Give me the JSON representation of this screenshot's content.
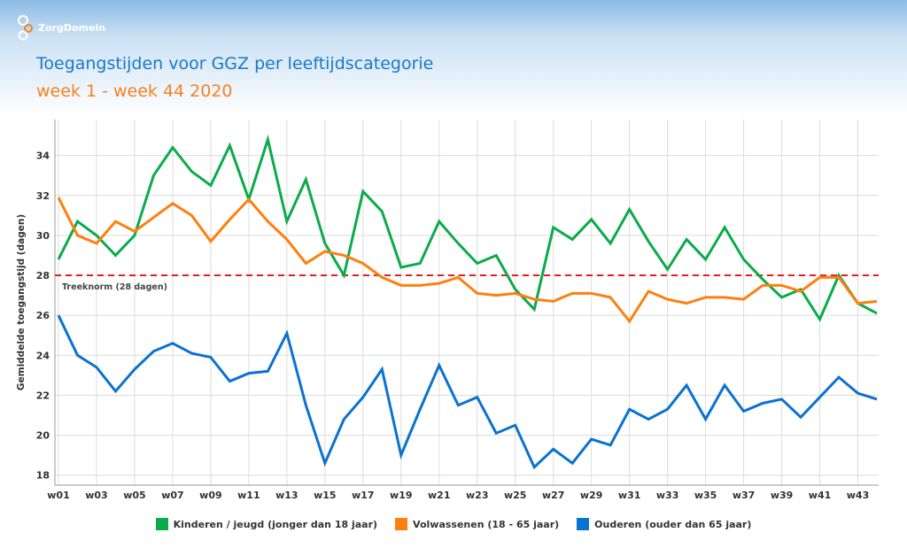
{
  "brand": {
    "name": "ZorgDomein"
  },
  "chart_data": {
    "type": "line",
    "title": "Toegangstijden voor GGZ per leeftijdscategorie",
    "subtitle": "week 1 - week 44 2020",
    "xlabel": "",
    "ylabel": "Gemiddelde toegangstijd (dagen)",
    "ylim": [
      17.5,
      35.8
    ],
    "yticks": [
      18,
      20,
      22,
      24,
      26,
      28,
      30,
      32,
      34
    ],
    "grid": true,
    "legend_position": "bottom",
    "x": [
      "w01",
      "w02",
      "w03",
      "w04",
      "w05",
      "w06",
      "w07",
      "w08",
      "w09",
      "w10",
      "w11",
      "w12",
      "w13",
      "w14",
      "w15",
      "w16",
      "w17",
      "w18",
      "w19",
      "w20",
      "w21",
      "w22",
      "w23",
      "w24",
      "w25",
      "w26",
      "w27",
      "w28",
      "w29",
      "w30",
      "w31",
      "w32",
      "w33",
      "w34",
      "w35",
      "w36",
      "w37",
      "w38",
      "w39",
      "w40",
      "w41",
      "w42",
      "w43",
      "w44"
    ],
    "xtick_labels": [
      "w01",
      "w03",
      "w05",
      "w07",
      "w09",
      "w11",
      "w13",
      "w15",
      "w17",
      "w19",
      "w21",
      "w23",
      "w25",
      "w27",
      "w29",
      "w31",
      "w33",
      "w35",
      "w37",
      "w39",
      "w41",
      "w43"
    ],
    "reference_line": {
      "value": 28,
      "label": "Treeknorm (28 dagen)",
      "color": "#e02020"
    },
    "series": [
      {
        "name": "Kinderen / jeugd (jonger dan 18 jaar)",
        "color": "#0aab4b",
        "values": [
          28.8,
          30.7,
          30.0,
          29.0,
          30.0,
          33.0,
          34.4,
          33.2,
          32.5,
          34.5,
          31.8,
          34.8,
          30.7,
          32.8,
          29.6,
          28.0,
          32.2,
          31.2,
          28.4,
          28.6,
          30.7,
          29.6,
          28.6,
          29.0,
          27.3,
          26.3,
          30.4,
          29.8,
          30.8,
          29.6,
          31.3,
          29.7,
          28.3,
          29.8,
          28.8,
          30.4,
          28.8,
          27.8,
          26.9,
          27.3,
          25.8,
          28.0,
          26.6,
          26.1
        ]
      },
      {
        "name": "Volwassenen (18 - 65 jaar)",
        "color": "#ff7f0e",
        "values": [
          31.9,
          30.0,
          29.6,
          30.7,
          30.2,
          30.9,
          31.6,
          31.0,
          29.7,
          30.8,
          31.8,
          30.7,
          29.8,
          28.6,
          29.2,
          29.0,
          28.6,
          27.9,
          27.5,
          27.5,
          27.6,
          27.9,
          27.1,
          27.0,
          27.1,
          26.8,
          26.7,
          27.1,
          27.1,
          26.9,
          25.7,
          27.2,
          26.8,
          26.6,
          26.9,
          26.9,
          26.8,
          27.5,
          27.5,
          27.2,
          27.9,
          27.9,
          26.6,
          26.7
        ]
      },
      {
        "name": "Ouderen (ouder dan 65 jaar)",
        "color": "#0a72d0",
        "values": [
          26.0,
          24.0,
          23.4,
          22.2,
          23.3,
          24.2,
          24.6,
          24.1,
          23.9,
          22.7,
          23.1,
          23.2,
          25.1,
          21.5,
          18.6,
          20.8,
          21.9,
          23.3,
          19.0,
          21.3,
          23.5,
          21.5,
          21.9,
          20.1,
          20.5,
          18.4,
          19.3,
          18.6,
          19.8,
          19.5,
          21.3,
          20.8,
          21.3,
          22.5,
          20.8,
          22.5,
          21.2,
          21.6,
          21.8,
          20.9,
          21.9,
          22.9,
          22.1,
          21.8
        ]
      }
    ]
  }
}
